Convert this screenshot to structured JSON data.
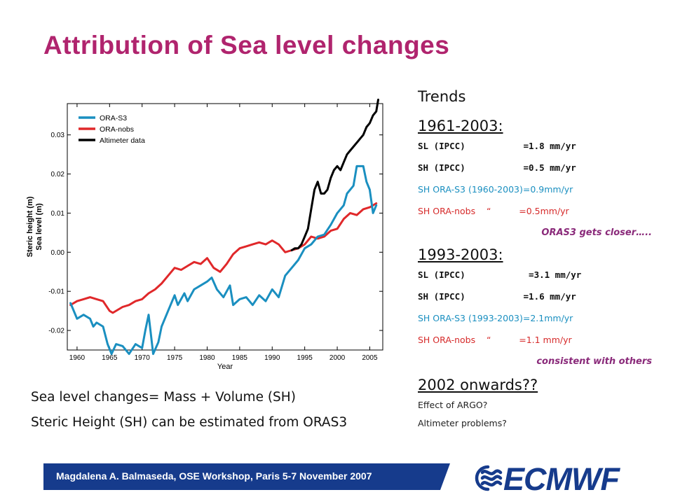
{
  "slide": {
    "title": "Attribution of Sea level changes",
    "footer": "Magdalena A. Balmaseda, OSE Workshop, Paris 5-7 November 2007",
    "logo_text": "ECMWF"
  },
  "right": {
    "trends": "Trends",
    "period1": "1961-2003:",
    "p1_lines": [
      {
        "text": "SL (IPCC)           =1.8 mm/yr",
        "style": "mono"
      },
      {
        "text": "SH (IPCC)           =0.5 mm/yr",
        "style": "mono"
      },
      {
        "text": "SH ORA-S3 (1960-2003)=0.9mm/yr",
        "style": "blue"
      },
      {
        "text": "SH ORA-nobs    “          =0.5mm/yr",
        "style": "red"
      }
    ],
    "p1_note": "ORAS3 gets closer…..",
    "period2": "1993-2003:",
    "p2_lines": [
      {
        "text": "SL (IPCC)            =3.1 mm/yr",
        "style": "mono"
      },
      {
        "text": "SH (IPCC)           =1.6 mm/yr",
        "style": "mono"
      },
      {
        "text": "SH ORA-S3 (1993-2003)=2.1mm/yr",
        "style": "blue"
      },
      {
        "text": "SH ORA-nobs    “          =1.1 mm/yr",
        "style": "red"
      }
    ],
    "p2_note": "consistent with others",
    "period3": "2002 onwards??",
    "p3_lines": [
      "Effect of ARGO?",
      "Altimeter problems?"
    ]
  },
  "bottom": {
    "line1": "Sea level changes= Mass + Volume (SH)",
    "line2": "Steric Height (SH) can be estimated from ORAS3"
  },
  "colors": {
    "title": "#b0246e",
    "ora_s3": "#1a8fc0",
    "ora_nobs": "#e0282a",
    "altimeter": "#000000",
    "footer_bar": "#163b8c"
  },
  "chart_data": {
    "type": "line",
    "title": "",
    "xlabel": "Year",
    "ylabel": "Steric height (m)\nSea level (m)",
    "xlim": [
      1958.5,
      2007
    ],
    "ylim": [
      -0.025,
      0.038
    ],
    "xticks": [
      1960,
      1965,
      1970,
      1975,
      1980,
      1985,
      1990,
      1995,
      2000,
      2005
    ],
    "yticks": [
      -0.02,
      -0.01,
      0.0,
      0.01,
      0.02,
      0.03
    ],
    "ytick_labels": [
      "-0.02",
      "-0.01",
      "0.00",
      "0.01",
      "0.02",
      "0.03"
    ],
    "legend_placement": "top-left",
    "series": [
      {
        "name": "ORA-S3",
        "color": "#1a8fc0",
        "x": [
          1959.0,
          1960.0,
          1961.0,
          1962.0,
          1962.5,
          1963.0,
          1964.0,
          1964.7,
          1965.3,
          1966.0,
          1967.0,
          1968.0,
          1969.0,
          1970.0,
          1970.5,
          1971.0,
          1971.7,
          1972.5,
          1973.0,
          1974.0,
          1975.0,
          1975.5,
          1976.5,
          1977.0,
          1978.0,
          1979.0,
          1980.0,
          1980.7,
          1981.5,
          1982.5,
          1983.5,
          1984.0,
          1985.0,
          1986.0,
          1987.0,
          1988.0,
          1989.0,
          1990.0,
          1991.0,
          1992.0,
          1993.0,
          1994.0,
          1995.0,
          1996.0,
          1997.0,
          1998.0,
          1999.0,
          2000.0,
          2001.0,
          2001.5,
          2002.0,
          2002.5,
          2003.0,
          2004.0,
          2004.5,
          2005.0,
          2005.5,
          2006.0
        ],
        "values": [
          -0.013,
          -0.017,
          -0.016,
          -0.017,
          -0.019,
          -0.018,
          -0.019,
          -0.0235,
          -0.026,
          -0.0235,
          -0.024,
          -0.026,
          -0.0235,
          -0.0245,
          -0.02,
          -0.016,
          -0.026,
          -0.023,
          -0.019,
          -0.015,
          -0.011,
          -0.0135,
          -0.0105,
          -0.0125,
          -0.0095,
          -0.0085,
          -0.0075,
          -0.0065,
          -0.0095,
          -0.0115,
          -0.0085,
          -0.0135,
          -0.012,
          -0.0115,
          -0.0135,
          -0.011,
          -0.0125,
          -0.0095,
          -0.0115,
          -0.006,
          -0.004,
          -0.002,
          0.001,
          0.002,
          0.004,
          0.0045,
          0.007,
          0.01,
          0.012,
          0.015,
          0.016,
          0.017,
          0.022,
          0.022,
          0.018,
          0.016,
          0.01,
          0.012
        ]
      },
      {
        "name": "ORA-nobs",
        "color": "#e0282a",
        "x": [
          1959.0,
          1960.0,
          1961.0,
          1962.0,
          1963.0,
          1964.0,
          1965.0,
          1965.5,
          1967.0,
          1968.0,
          1969.0,
          1970.0,
          1971.0,
          1972.0,
          1973.0,
          1974.0,
          1975.0,
          1976.0,
          1977.0,
          1978.0,
          1979.0,
          1980.0,
          1981.0,
          1982.0,
          1983.0,
          1984.0,
          1985.0,
          1986.0,
          1987.0,
          1988.0,
          1989.0,
          1990.0,
          1991.0,
          1992.0,
          1993.0,
          1994.0,
          1995.0,
          1996.0,
          1997.0,
          1998.0,
          1999.0,
          2000.0,
          2001.0,
          2002.0,
          2003.0,
          2004.0,
          2005.0,
          2006.0
        ],
        "values": [
          -0.0135,
          -0.0125,
          -0.012,
          -0.0115,
          -0.012,
          -0.0125,
          -0.015,
          -0.0155,
          -0.014,
          -0.0135,
          -0.0125,
          -0.012,
          -0.0105,
          -0.0095,
          -0.008,
          -0.006,
          -0.004,
          -0.0045,
          -0.0035,
          -0.0025,
          -0.003,
          -0.0015,
          -0.004,
          -0.005,
          -0.003,
          -0.0005,
          0.001,
          0.0015,
          0.002,
          0.0025,
          0.002,
          0.003,
          0.002,
          0.0,
          0.0005,
          0.001,
          0.002,
          0.004,
          0.0035,
          0.004,
          0.0055,
          0.006,
          0.0085,
          0.01,
          0.0095,
          0.011,
          0.0115,
          0.0125
        ]
      },
      {
        "name": "Altimeter data",
        "color": "#000000",
        "x": [
          1993.0,
          1993.5,
          1994.0,
          1994.5,
          1995.0,
          1995.5,
          1996.0,
          1996.5,
          1997.0,
          1997.5,
          1998.0,
          1998.5,
          1999.0,
          1999.5,
          2000.0,
          2000.5,
          2001.0,
          2001.5,
          2002.0,
          2002.5,
          2003.0,
          2003.5,
          2004.0,
          2004.5,
          2005.0,
          2005.5,
          2006.0,
          2006.3
        ],
        "values": [
          0.0005,
          0.001,
          0.001,
          0.002,
          0.004,
          0.006,
          0.011,
          0.016,
          0.018,
          0.015,
          0.015,
          0.016,
          0.019,
          0.021,
          0.022,
          0.021,
          0.023,
          0.025,
          0.026,
          0.027,
          0.028,
          0.029,
          0.03,
          0.032,
          0.033,
          0.035,
          0.036,
          0.039
        ]
      }
    ]
  }
}
